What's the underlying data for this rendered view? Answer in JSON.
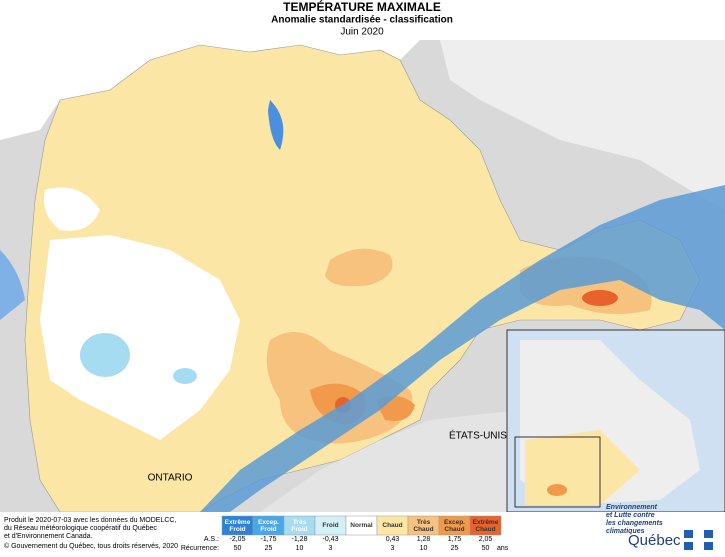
{
  "header": {
    "title": "TEMPÉRATURE MAXIMALE",
    "subtitle": "Anomalie standardisée - classification",
    "date": "Juin 2020"
  },
  "map": {
    "labels": [
      "ÉTATS-UNIS",
      "ONTARIO"
    ]
  },
  "footer": {
    "lines": [
      "Produit le 2020-07-03 avec les données du MODELCC,",
      "du Réseau météorologique coopératif du Québec",
      "et d'Environnement Canada."
    ],
    "copyright": "© Gouvernement du Québec, tous droits réservés, 2020"
  },
  "legend": {
    "classes": [
      {
        "label": "Extrême Froid",
        "color": "#2b82d6"
      },
      {
        "label": "Excep. Froid",
        "color": "#4aa6e6"
      },
      {
        "label": "Très Froid",
        "color": "#a6dcf2"
      },
      {
        "label": "Froid",
        "color": "#d4f0f7"
      },
      {
        "label": "Normal",
        "color": "#ffffff"
      },
      {
        "label": "Chaud",
        "color": "#fce6a6"
      },
      {
        "label": "Très Chaud",
        "color": "#f7c27e"
      },
      {
        "label": "Excep. Chaud",
        "color": "#f29a4c"
      },
      {
        "label": "Extrême Chaud",
        "color": "#e8632c"
      }
    ],
    "as_label": "A.S.:",
    "as_values": [
      "-2,05",
      "-1,75",
      "-1,28",
      "-0,43",
      "0,43",
      "1,28",
      "1,75",
      "2,05"
    ],
    "recurrence_label": "Récurrence:",
    "recurrence_values": [
      "50",
      "25",
      "10",
      "3",
      "3",
      "10",
      "25",
      "50"
    ],
    "recurrence_unit": "ans"
  },
  "logo": {
    "ministry": [
      "Environnement",
      "et Lutte contre",
      "les changements",
      "climatiques"
    ],
    "name": "Québec"
  }
}
